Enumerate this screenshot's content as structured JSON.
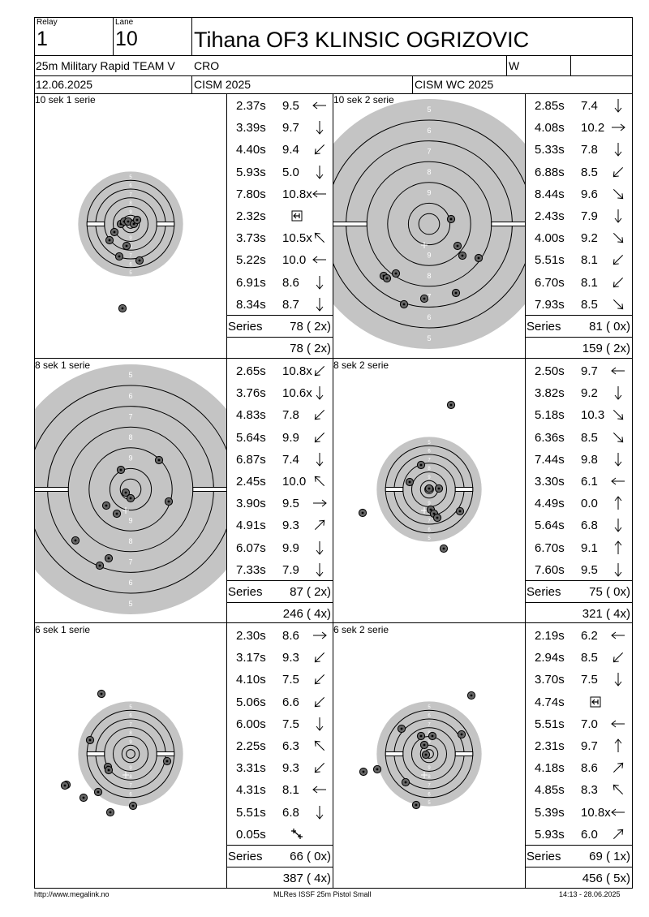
{
  "header": {
    "relay_label": "Relay",
    "relay_value": "1",
    "lane_label": "Lane",
    "lane_value": "10",
    "athlete_name": "Tihana OF3 KLINSIC OGRIZOVIC",
    "event": "25m Military Rapid TEAM V",
    "nation": "CRO",
    "gender": "W",
    "date": "12.06.2025",
    "competition": "CISM 2025",
    "match": "CISM WC 2025"
  },
  "series": [
    {
      "title": "10 sek 1 serie",
      "shots": [
        {
          "time": "2.37s",
          "score": "9.5",
          "dir": "W"
        },
        {
          "time": "3.39s",
          "score": "9.7",
          "dir": "S"
        },
        {
          "time": "4.40s",
          "score": "9.4",
          "dir": "SW"
        },
        {
          "time": "5.93s",
          "score": "5.0",
          "dir": "S"
        },
        {
          "time": "7.80s",
          "score": "10.8x",
          "dir": "W"
        },
        {
          "time": "2.32s",
          "score": "",
          "dir": "box"
        },
        {
          "time": "3.73s",
          "score": "10.5x",
          "dir": "NW"
        },
        {
          "time": "5.22s",
          "score": "10.0",
          "dir": "W"
        },
        {
          "time": "6.91s",
          "score": "8.6",
          "dir": "S"
        },
        {
          "time": "8.34s",
          "score": "8.7",
          "dir": "S"
        }
      ],
      "series_label": "Series",
      "series_total": "78 ( 2x)",
      "running_total": "78 ( 2x)",
      "target": {
        "type": "small",
        "hits": [
          [
            -12,
            0
          ],
          [
            -8,
            -3
          ],
          [
            -3,
            -3
          ],
          [
            4,
            0
          ],
          [
            8,
            -5
          ],
          [
            -20,
            10
          ],
          [
            -26,
            20
          ],
          [
            -5,
            27
          ],
          [
            -14,
            40
          ],
          [
            11,
            45
          ],
          [
            -10,
            104
          ]
        ]
      }
    },
    {
      "title": "10 sek 2 serie",
      "shots": [
        {
          "time": "2.85s",
          "score": "7.4",
          "dir": "S"
        },
        {
          "time": "4.08s",
          "score": "10.2",
          "dir": "E"
        },
        {
          "time": "5.33s",
          "score": "7.8",
          "dir": "S"
        },
        {
          "time": "6.88s",
          "score": "8.5",
          "dir": "SW"
        },
        {
          "time": "8.44s",
          "score": "9.6",
          "dir": "SE"
        },
        {
          "time": "2.43s",
          "score": "7.9",
          "dir": "S"
        },
        {
          "time": "4.00s",
          "score": "9.2",
          "dir": "SE"
        },
        {
          "time": "5.51s",
          "score": "8.1",
          "dir": "SW"
        },
        {
          "time": "6.70s",
          "score": "8.1",
          "dir": "SW"
        },
        {
          "time": "7.93s",
          "score": "8.5",
          "dir": "SE"
        }
      ],
      "series_label": "Series",
      "series_total": "81 ( 0x)",
      "running_total": "159 ( 2x)",
      "target": {
        "type": "large",
        "hits": [
          [
            27,
            -6
          ],
          [
            35,
            27
          ],
          [
            41,
            39
          ],
          [
            61,
            42
          ],
          [
            -56,
            64
          ],
          [
            -52,
            67
          ],
          [
            -41,
            61
          ],
          [
            33,
            85
          ],
          [
            -6,
            92
          ],
          [
            -31,
            99
          ]
        ]
      }
    },
    {
      "title": "8 sek 1 serie",
      "shots": [
        {
          "time": "2.65s",
          "score": "10.8x",
          "dir": "SW"
        },
        {
          "time": "3.76s",
          "score": "10.6x",
          "dir": "S"
        },
        {
          "time": "4.83s",
          "score": "7.8",
          "dir": "SW"
        },
        {
          "time": "5.64s",
          "score": "9.9",
          "dir": "SW"
        },
        {
          "time": "6.87s",
          "score": "7.4",
          "dir": "S"
        },
        {
          "time": "2.45s",
          "score": "10.0",
          "dir": "NW"
        },
        {
          "time": "3.90s",
          "score": "9.5",
          "dir": "E"
        },
        {
          "time": "4.91s",
          "score": "9.3",
          "dir": "NE"
        },
        {
          "time": "6.07s",
          "score": "9.9",
          "dir": "S"
        },
        {
          "time": "7.33s",
          "score": "7.9",
          "dir": "S"
        }
      ],
      "series_label": "Series",
      "series_total": "87 ( 2x)",
      "running_total": "246 ( 4x)",
      "target": {
        "type": "large",
        "hits": [
          [
            -6,
            4
          ],
          [
            0,
            11
          ],
          [
            -12,
            -24
          ],
          [
            35,
            -36
          ],
          [
            47,
            15
          ],
          [
            -30,
            20
          ],
          [
            -17,
            30
          ],
          [
            -68,
            63
          ],
          [
            -27,
            85
          ],
          [
            -38,
            94
          ]
        ]
      }
    },
    {
      "title": "8 sek 2 serie",
      "shots": [
        {
          "time": "2.50s",
          "score": "9.7",
          "dir": "W"
        },
        {
          "time": "3.82s",
          "score": "9.2",
          "dir": "S"
        },
        {
          "time": "5.18s",
          "score": "10.3",
          "dir": "SE"
        },
        {
          "time": "6.36s",
          "score": "8.5",
          "dir": "SE"
        },
        {
          "time": "7.44s",
          "score": "9.8",
          "dir": "S"
        },
        {
          "time": "3.30s",
          "score": "6.1",
          "dir": "W"
        },
        {
          "time": "4.49s",
          "score": "0.0",
          "dir": "N"
        },
        {
          "time": "5.64s",
          "score": "6.8",
          "dir": "S"
        },
        {
          "time": "6.70s",
          "score": "9.1",
          "dir": "N"
        },
        {
          "time": "7.60s",
          "score": "9.5",
          "dir": "S"
        }
      ],
      "series_label": "Series",
      "series_total": "75 ( 0x)",
      "running_total": "321 ( 4x)",
      "target": {
        "type": "small",
        "hits": [
          [
            0,
            -1
          ],
          [
            -10,
            -30
          ],
          [
            -24,
            -9
          ],
          [
            12,
            -1
          ],
          [
            2,
            25
          ],
          [
            6,
            30
          ],
          [
            10,
            35
          ],
          [
            38,
            27
          ],
          [
            -82,
            29
          ],
          [
            18,
            73
          ],
          [
            27,
            -104
          ]
        ]
      }
    },
    {
      "title": "6 sek 1 serie",
      "shots": [
        {
          "time": "2.30s",
          "score": "8.6",
          "dir": "E"
        },
        {
          "time": "3.17s",
          "score": "9.3",
          "dir": "SW"
        },
        {
          "time": "4.10s",
          "score": "7.5",
          "dir": "SW"
        },
        {
          "time": "5.06s",
          "score": "6.6",
          "dir": "SW"
        },
        {
          "time": "6.00s",
          "score": "7.5",
          "dir": "S"
        },
        {
          "time": "2.25s",
          "score": "6.3",
          "dir": "NW"
        },
        {
          "time": "3.31s",
          "score": "9.3",
          "dir": "SW"
        },
        {
          "time": "4.31s",
          "score": "8.1",
          "dir": "W"
        },
        {
          "time": "5.51s",
          "score": "6.8",
          "dir": "S"
        },
        {
          "time": "0.05s",
          "score": "",
          "dir": "cross"
        }
      ],
      "series_label": "Series",
      "series_total": "66 ( 0x)",
      "running_total": "387 ( 4x)",
      "target": {
        "type": "small",
        "hits": [
          [
            -36,
            -74
          ],
          [
            -50,
            -17
          ],
          [
            -28,
            16
          ],
          [
            -27,
            20
          ],
          [
            45,
            9
          ],
          [
            -79,
            38
          ],
          [
            -81,
            39
          ],
          [
            -40,
            47
          ],
          [
            -58,
            54
          ],
          [
            3,
            64
          ],
          [
            -25,
            72
          ]
        ]
      }
    },
    {
      "title": "6 sek 2 serie",
      "shots": [
        {
          "time": "2.19s",
          "score": "6.2",
          "dir": "W"
        },
        {
          "time": "2.94s",
          "score": "8.5",
          "dir": "SW"
        },
        {
          "time": "3.70s",
          "score": "7.5",
          "dir": "S"
        },
        {
          "time": "4.74s",
          "score": "",
          "dir": "box"
        },
        {
          "time": "5.51s",
          "score": "7.0",
          "dir": "W"
        },
        {
          "time": "2.31s",
          "score": "9.7",
          "dir": "N"
        },
        {
          "time": "4.18s",
          "score": "8.6",
          "dir": "NE"
        },
        {
          "time": "4.85s",
          "score": "8.3",
          "dir": "NW"
        },
        {
          "time": "5.39s",
          "score": "10.8x",
          "dir": "W"
        },
        {
          "time": "5.93s",
          "score": "6.0",
          "dir": "NE"
        }
      ],
      "series_label": "Series",
      "series_total": "69 ( 1x)",
      "running_total": "456 ( 5x)",
      "target": {
        "type": "small",
        "hits": [
          [
            -4,
            1
          ],
          [
            -10,
            -22
          ],
          [
            4,
            -22
          ],
          [
            40,
            -24
          ],
          [
            -34,
            -31
          ],
          [
            -6,
            -11
          ],
          [
            52,
            -72
          ],
          [
            -64,
            19
          ],
          [
            -81,
            22
          ],
          [
            -29,
            35
          ],
          [
            -16,
            63
          ]
        ]
      }
    }
  ],
  "footer": {
    "website": "http://www.megalink.no",
    "software": "MLRes ISSF 25m Pistol Small",
    "printed": "14:13 - 28.06.2025"
  }
}
